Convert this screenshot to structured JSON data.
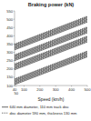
{
  "chart_data": {
    "type": "line",
    "title": "Braking power (kN)",
    "xlabel": "Speed (km/h)",
    "x": [
      40,
      500
    ],
    "xlim": [
      40,
      500
    ],
    "ylim": [
      100,
      550
    ],
    "xticks": [
      40,
      50,
      100,
      200,
      300,
      400,
      500
    ],
    "yticks": [
      100,
      150,
      200,
      250,
      300,
      350,
      400,
      450,
      500,
      550
    ],
    "grid": false,
    "legend": "bottom",
    "color": "#000000",
    "series": [
      {
        "name": "640 mm diameter, 110 mm track disc",
        "line_style": "solid",
        "values": [
          105,
          272.9
        ]
      },
      {
        "line_style": "solid",
        "values": [
          113,
          280.9
        ]
      },
      {
        "line_style": "solid",
        "values": [
          121,
          288.9
        ]
      },
      {
        "line_style": "solid",
        "values": [
          129,
          296.9
        ]
      },
      {
        "line_style": "solid",
        "values": [
          137,
          304.9
        ]
      },
      {
        "name": "disc diameter 590 mm, thickness 130 mm",
        "line_style": "dashed",
        "values": [
          109,
          276.9
        ]
      },
      {
        "line_style": "dashed",
        "values": [
          117,
          284.9
        ]
      },
      {
        "line_style": "dashed",
        "values": [
          125,
          292.9
        ]
      },
      {
        "line_style": "dashed",
        "values": [
          133,
          300.9
        ]
      },
      {
        "line_style": "dashed",
        "values": [
          141,
          308.9
        ]
      },
      {
        "line_style": "solid",
        "values": [
          195,
          362.9
        ]
      },
      {
        "line_style": "solid",
        "values": [
          203,
          370.9
        ]
      },
      {
        "line_style": "solid",
        "values": [
          211,
          378.9
        ]
      },
      {
        "line_style": "solid",
        "values": [
          219,
          386.9
        ]
      },
      {
        "line_style": "solid",
        "values": [
          227,
          394.9
        ]
      },
      {
        "line_style": "dashed",
        "values": [
          199,
          366.9
        ]
      },
      {
        "line_style": "dashed",
        "values": [
          207,
          374.9
        ]
      },
      {
        "line_style": "dashed",
        "values": [
          215,
          382.9
        ]
      },
      {
        "line_style": "dashed",
        "values": [
          223,
          390.9
        ]
      },
      {
        "line_style": "dashed",
        "values": [
          231,
          398.9
        ]
      },
      {
        "line_style": "solid",
        "values": [
          250,
          417.9
        ]
      },
      {
        "line_style": "solid",
        "values": [
          258,
          425.9
        ]
      },
      {
        "line_style": "solid",
        "values": [
          266,
          433.9
        ]
      },
      {
        "line_style": "solid",
        "values": [
          274,
          441.9
        ]
      },
      {
        "line_style": "solid",
        "values": [
          282,
          449.9
        ]
      },
      {
        "line_style": "dashed",
        "values": [
          254,
          421.9
        ]
      },
      {
        "line_style": "dashed",
        "values": [
          262,
          429.9
        ]
      },
      {
        "line_style": "dashed",
        "values": [
          270,
          437.9
        ]
      },
      {
        "line_style": "dashed",
        "values": [
          278,
          445.9
        ]
      },
      {
        "line_style": "dashed",
        "values": [
          286,
          453.9
        ]
      },
      {
        "line_style": "solid",
        "values": [
          315,
          482.9
        ]
      },
      {
        "line_style": "solid",
        "values": [
          323,
          490.9
        ]
      },
      {
        "line_style": "solid",
        "values": [
          331,
          498.9
        ]
      },
      {
        "line_style": "solid",
        "values": [
          339,
          506.9
        ]
      },
      {
        "line_style": "solid",
        "values": [
          347,
          514.9
        ]
      },
      {
        "line_style": "dashed",
        "values": [
          319,
          486.9
        ]
      },
      {
        "line_style": "dashed",
        "values": [
          327,
          494.9
        ]
      },
      {
        "line_style": "dashed",
        "values": [
          335,
          502.9
        ]
      },
      {
        "line_style": "dashed",
        "values": [
          343,
          510.9
        ]
      },
      {
        "line_style": "dashed",
        "values": [
          351,
          518.9
        ]
      }
    ]
  }
}
